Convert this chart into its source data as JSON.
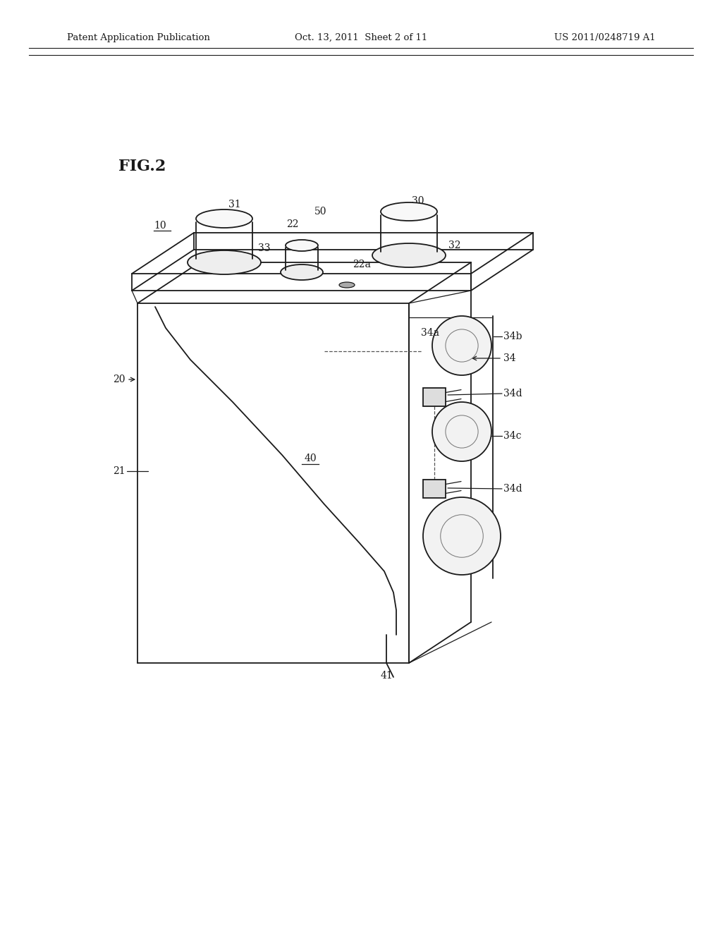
{
  "bg_color": "#ffffff",
  "line_color": "#1a1a1a",
  "header_left": "Patent Application Publication",
  "header_center": "Oct. 13, 2011  Sheet 2 of 11",
  "header_right": "US 2011/0248719 A1",
  "fig_label": "FIG.2",
  "lw_main": 1.3,
  "lw_thin": 0.9,
  "fs_label": 10,
  "fs_header": 9.5,
  "fs_figlabel": 16
}
